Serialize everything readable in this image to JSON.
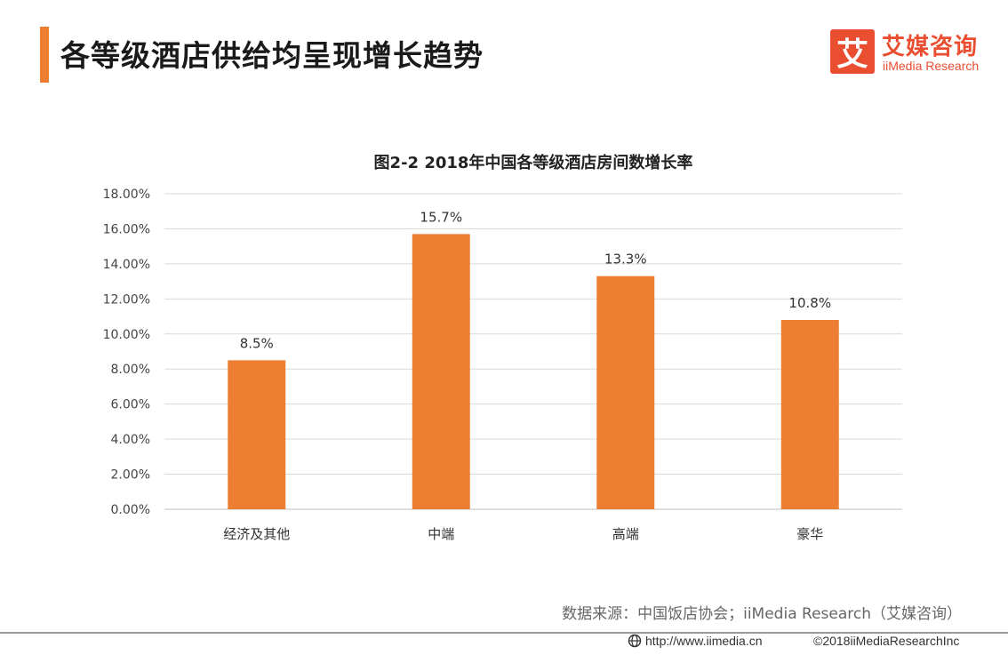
{
  "header": {
    "title": "各等级酒店供给均呈现增长趋势"
  },
  "logo": {
    "mark": "艾",
    "name_cn": "艾媒咨询",
    "name_en": "iiMedia Research"
  },
  "chart_data": {
    "type": "bar",
    "title": "图2-2 2018年中国各等级酒店房间数增长率",
    "categories": [
      "经济及其他",
      "中端",
      "高端",
      "豪华"
    ],
    "values": [
      8.5,
      15.7,
      13.3,
      10.8
    ],
    "data_labels": [
      "8.5%",
      "15.7%",
      "13.3%",
      "10.8%"
    ],
    "ylim": [
      0,
      18
    ],
    "yticks": [
      0,
      2,
      4,
      6,
      8,
      10,
      12,
      14,
      16,
      18
    ],
    "ytick_labels": [
      "0.00%",
      "2.00%",
      "4.00%",
      "6.00%",
      "8.00%",
      "10.00%",
      "12.00%",
      "14.00%",
      "16.00%",
      "18.00%"
    ],
    "xlabel": "",
    "ylabel": "",
    "grid": true,
    "legend": "none",
    "bar_color": "#ED7D31"
  },
  "source": "数据来源：中国饭店协会；iiMedia Research（艾媒咨询）",
  "footer": {
    "url": "http://www.iimedia.cn",
    "copyright": "©2018iiMediaResearchInc"
  },
  "colors": {
    "accent": "#ED7D31",
    "brand": "#E94E31"
  }
}
